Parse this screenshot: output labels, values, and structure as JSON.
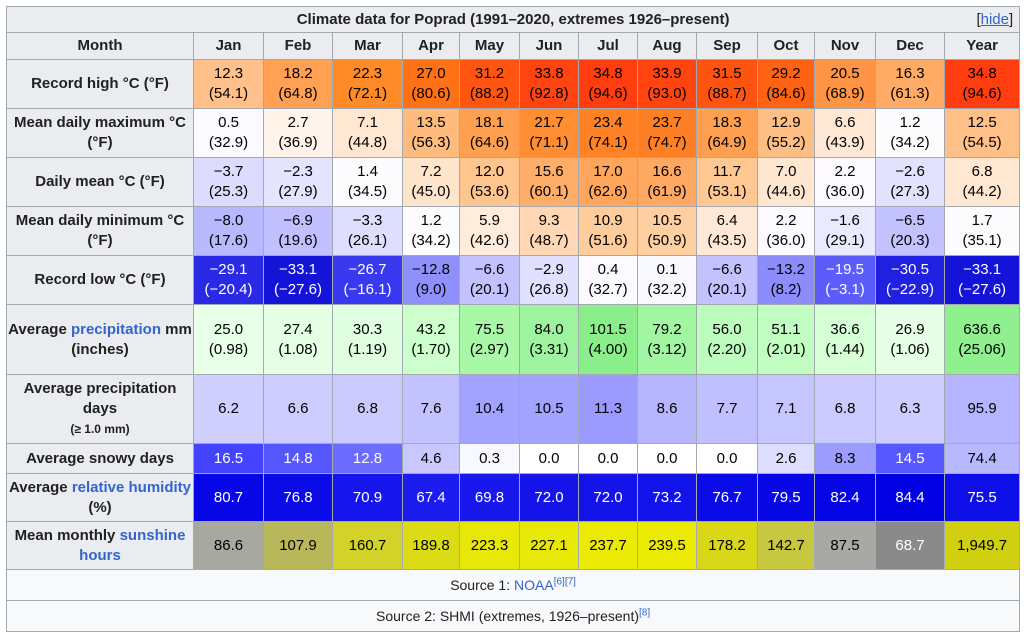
{
  "caption": "Climate data for Poprad (1991–2020, extremes 1926–present)",
  "hide_label": "hide",
  "columns": [
    "Month",
    "Jan",
    "Feb",
    "Mar",
    "Apr",
    "May",
    "Jun",
    "Jul",
    "Aug",
    "Sep",
    "Oct",
    "Nov",
    "Dec",
    "Year"
  ],
  "rows": [
    {
      "label": "Record high °C (°F)",
      "cells": [
        {
          "c": "12.3",
          "f": "(54.1)",
          "bg": "#ffc08a",
          "fg": "#000000"
        },
        {
          "c": "18.2",
          "f": "(64.8)",
          "bg": "#ffa052",
          "fg": "#000000"
        },
        {
          "c": "22.3",
          "f": "(72.1)",
          "bg": "#ff8a28",
          "fg": "#000000"
        },
        {
          "c": "27.0",
          "f": "(80.6)",
          "bg": "#ff7115",
          "fg": "#000000"
        },
        {
          "c": "31.2",
          "f": "(88.2)",
          "bg": "#ff5510",
          "fg": "#000000"
        },
        {
          "c": "33.8",
          "f": "(92.8)",
          "bg": "#ff4410",
          "fg": "#000000"
        },
        {
          "c": "34.8",
          "f": "(94.6)",
          "bg": "#ff3d0e",
          "fg": "#000000"
        },
        {
          "c": "33.9",
          "f": "(93.0)",
          "bg": "#ff4410",
          "fg": "#000000"
        },
        {
          "c": "31.5",
          "f": "(88.7)",
          "bg": "#ff5310",
          "fg": "#000000"
        },
        {
          "c": "29.2",
          "f": "(84.6)",
          "bg": "#ff6212",
          "fg": "#000000"
        },
        {
          "c": "20.5",
          "f": "(68.9)",
          "bg": "#ff9544",
          "fg": "#000000"
        },
        {
          "c": "16.3",
          "f": "(61.3)",
          "bg": "#ffab66",
          "fg": "#000000"
        },
        {
          "c": "34.8",
          "f": "(94.6)",
          "bg": "#ff3d0e",
          "fg": "#000000"
        }
      ]
    },
    {
      "label": "Mean daily maximum °C (°F)",
      "cells": [
        {
          "c": "0.5",
          "f": "(32.9)",
          "bg": "#fafaff",
          "fg": "#000000"
        },
        {
          "c": "2.7",
          "f": "(36.9)",
          "bg": "#fff3ea",
          "fg": "#000000"
        },
        {
          "c": "7.1",
          "f": "(44.8)",
          "bg": "#ffe7d2",
          "fg": "#000000"
        },
        {
          "c": "13.5",
          "f": "(56.3)",
          "bg": "#ffba7e",
          "fg": "#000000"
        },
        {
          "c": "18.1",
          "f": "(64.6)",
          "bg": "#ffa050",
          "fg": "#000000"
        },
        {
          "c": "21.7",
          "f": "(71.1)",
          "bg": "#ff8d31",
          "fg": "#000000"
        },
        {
          "c": "23.4",
          "f": "(74.1)",
          "bg": "#ff8226",
          "fg": "#000000"
        },
        {
          "c": "23.7",
          "f": "(74.7)",
          "bg": "#ff8024",
          "fg": "#000000"
        },
        {
          "c": "18.3",
          "f": "(64.9)",
          "bg": "#ff9f4f",
          "fg": "#000000"
        },
        {
          "c": "12.9",
          "f": "(55.2)",
          "bg": "#ffbe84",
          "fg": "#000000"
        },
        {
          "c": "6.6",
          "f": "(43.9)",
          "bg": "#ffe9d6",
          "fg": "#000000"
        },
        {
          "c": "1.2",
          "f": "(34.2)",
          "bg": "#fcfcff",
          "fg": "#000000"
        },
        {
          "c": "12.5",
          "f": "(54.5)",
          "bg": "#ffc087",
          "fg": "#000000"
        }
      ]
    },
    {
      "label": "Daily mean °C (°F)",
      "cells": [
        {
          "c": "−3.7",
          "f": "(25.3)",
          "bg": "#dcdcff",
          "fg": "#000000"
        },
        {
          "c": "−2.3",
          "f": "(27.9)",
          "bg": "#e4e4ff",
          "fg": "#000000"
        },
        {
          "c": "1.4",
          "f": "(34.5)",
          "bg": "#fcfcff",
          "fg": "#000000"
        },
        {
          "c": "7.2",
          "f": "(45.0)",
          "bg": "#ffe4cc",
          "fg": "#000000"
        },
        {
          "c": "12.0",
          "f": "(53.6)",
          "bg": "#ffc58e",
          "fg": "#000000"
        },
        {
          "c": "15.6",
          "f": "(60.1)",
          "bg": "#ffae6a",
          "fg": "#000000"
        },
        {
          "c": "17.0",
          "f": "(62.6)",
          "bg": "#ffa65c",
          "fg": "#000000"
        },
        {
          "c": "16.6",
          "f": "(61.9)",
          "bg": "#ffa862",
          "fg": "#000000"
        },
        {
          "c": "11.7",
          "f": "(53.1)",
          "bg": "#ffc792",
          "fg": "#000000"
        },
        {
          "c": "7.0",
          "f": "(44.6)",
          "bg": "#ffe6d0",
          "fg": "#000000"
        },
        {
          "c": "2.2",
          "f": "(36.0)",
          "bg": "#fcfaff",
          "fg": "#000000"
        },
        {
          "c": "−2.6",
          "f": "(27.3)",
          "bg": "#e2e2ff",
          "fg": "#000000"
        },
        {
          "c": "6.8",
          "f": "(44.2)",
          "bg": "#ffe7d2",
          "fg": "#000000"
        }
      ]
    },
    {
      "label": "Mean daily minimum °C (°F)",
      "cells": [
        {
          "c": "−8.0",
          "f": "(17.6)",
          "bg": "#b8b8ff",
          "fg": "#000000"
        },
        {
          "c": "−6.9",
          "f": "(19.6)",
          "bg": "#c0c0ff",
          "fg": "#000000"
        },
        {
          "c": "−3.3",
          "f": "(26.1)",
          "bg": "#dedeff",
          "fg": "#000000"
        },
        {
          "c": "1.2",
          "f": "(34.2)",
          "bg": "#fcfcff",
          "fg": "#000000"
        },
        {
          "c": "5.9",
          "f": "(42.6)",
          "bg": "#ffecda",
          "fg": "#000000"
        },
        {
          "c": "9.3",
          "f": "(48.7)",
          "bg": "#ffd7b4",
          "fg": "#000000"
        },
        {
          "c": "10.9",
          "f": "(51.6)",
          "bg": "#ffcc9c",
          "fg": "#000000"
        },
        {
          "c": "10.5",
          "f": "(50.9)",
          "bg": "#ffcfa2",
          "fg": "#000000"
        },
        {
          "c": "6.4",
          "f": "(43.5)",
          "bg": "#ffe9d6",
          "fg": "#000000"
        },
        {
          "c": "2.2",
          "f": "(36.0)",
          "bg": "#fcfaff",
          "fg": "#000000"
        },
        {
          "c": "−1.6",
          "f": "(29.1)",
          "bg": "#eaeaff",
          "fg": "#000000"
        },
        {
          "c": "−6.5",
          "f": "(20.3)",
          "bg": "#c2c2ff",
          "fg": "#000000"
        },
        {
          "c": "1.7",
          "f": "(35.1)",
          "bg": "#fcfcff",
          "fg": "#000000"
        }
      ]
    },
    {
      "label": "Record low °C (°F)",
      "cells": [
        {
          "c": "−29.1",
          "f": "(−20.4)",
          "bg": "#2a2ae6",
          "fg": "#ffffff"
        },
        {
          "c": "−33.1",
          "f": "(−27.6)",
          "bg": "#1414d8",
          "fg": "#ffffff"
        },
        {
          "c": "−26.7",
          "f": "(−16.1)",
          "bg": "#3939f0",
          "fg": "#ffffff"
        },
        {
          "c": "−12.8",
          "f": "(9.0)",
          "bg": "#9090fc",
          "fg": "#000000"
        },
        {
          "c": "−6.6",
          "f": "(20.1)",
          "bg": "#c2c2ff",
          "fg": "#000000"
        },
        {
          "c": "−2.9",
          "f": "(26.8)",
          "bg": "#e0e0ff",
          "fg": "#000000"
        },
        {
          "c": "0.4",
          "f": "(32.7)",
          "bg": "#fafaff",
          "fg": "#000000"
        },
        {
          "c": "0.1",
          "f": "(32.2)",
          "bg": "#f8f8ff",
          "fg": "#000000"
        },
        {
          "c": "−6.6",
          "f": "(20.1)",
          "bg": "#c2c2ff",
          "fg": "#000000"
        },
        {
          "c": "−13.2",
          "f": "(8.2)",
          "bg": "#8c8cfc",
          "fg": "#000000"
        },
        {
          "c": "−19.5",
          "f": "(−3.1)",
          "bg": "#5c5cfa",
          "fg": "#ffffff"
        },
        {
          "c": "−30.5",
          "f": "(−22.9)",
          "bg": "#2020e0",
          "fg": "#ffffff"
        },
        {
          "c": "−33.1",
          "f": "(−27.6)",
          "bg": "#1414d8",
          "fg": "#ffffff"
        }
      ]
    },
    {
      "label_pre": "Average",
      "label_link": "precipitation",
      "label_post": "mm (inches)",
      "cells": [
        {
          "c": "25.0",
          "f": "(0.98)",
          "bg": "#e8ffe8",
          "fg": "#000000"
        },
        {
          "c": "27.4",
          "f": "(1.08)",
          "bg": "#e4ffe4",
          "fg": "#000000"
        },
        {
          "c": "30.3",
          "f": "(1.19)",
          "bg": "#e0ffe0",
          "fg": "#000000"
        },
        {
          "c": "43.2",
          "f": "(1.70)",
          "bg": "#ccffcc",
          "fg": "#000000"
        },
        {
          "c": "75.5",
          "f": "(2.97)",
          "bg": "#a8f8a8",
          "fg": "#000000"
        },
        {
          "c": "84.0",
          "f": "(3.31)",
          "bg": "#9ef49e",
          "fg": "#000000"
        },
        {
          "c": "101.5",
          "f": "(4.00)",
          "bg": "#8aee8a",
          "fg": "#000000"
        },
        {
          "c": "79.2",
          "f": "(3.12)",
          "bg": "#a2f6a2",
          "fg": "#000000"
        },
        {
          "c": "56.0",
          "f": "(2.20)",
          "bg": "#bcfcbc",
          "fg": "#000000"
        },
        {
          "c": "51.1",
          "f": "(2.01)",
          "bg": "#c2fec2",
          "fg": "#000000"
        },
        {
          "c": "36.6",
          "f": "(1.44)",
          "bg": "#d6ffd6",
          "fg": "#000000"
        },
        {
          "c": "26.9",
          "f": "(1.06)",
          "bg": "#e6ffe6",
          "fg": "#000000"
        },
        {
          "c": "636.6",
          "f": "(25.06)",
          "bg": "#90f090",
          "fg": "#000000"
        }
      ]
    },
    {
      "label_pre": "Average precipitation days",
      "label_small": "(≥ 1.0 mm)",
      "cells": [
        {
          "c": "6.2",
          "bg": "#d0d0ff",
          "fg": "#000000"
        },
        {
          "c": "6.6",
          "bg": "#ccccff",
          "fg": "#000000"
        },
        {
          "c": "6.8",
          "bg": "#cacaff",
          "fg": "#000000"
        },
        {
          "c": "7.6",
          "bg": "#c2c2ff",
          "fg": "#000000"
        },
        {
          "c": "10.4",
          "bg": "#a2a2ff",
          "fg": "#000000"
        },
        {
          "c": "10.5",
          "bg": "#a2a2ff",
          "fg": "#000000"
        },
        {
          "c": "11.3",
          "bg": "#9a9aff",
          "fg": "#000000"
        },
        {
          "c": "8.6",
          "bg": "#b6b6ff",
          "fg": "#000000"
        },
        {
          "c": "7.7",
          "bg": "#c0c0ff",
          "fg": "#000000"
        },
        {
          "c": "7.1",
          "bg": "#c6c6ff",
          "fg": "#000000"
        },
        {
          "c": "6.8",
          "bg": "#cacaff",
          "fg": "#000000"
        },
        {
          "c": "6.3",
          "bg": "#cecdff",
          "fg": "#000000"
        },
        {
          "c": "95.9",
          "bg": "#b4b4ff",
          "fg": "#000000"
        }
      ]
    },
    {
      "label": "Average snowy days",
      "cells": [
        {
          "c": "16.5",
          "bg": "#4444ff",
          "fg": "#ffffff"
        },
        {
          "c": "14.8",
          "bg": "#5656ff",
          "fg": "#ffffff"
        },
        {
          "c": "12.8",
          "bg": "#6c6cff",
          "fg": "#ffffff"
        },
        {
          "c": "4.6",
          "bg": "#c8c8ff",
          "fg": "#000000"
        },
        {
          "c": "0.3",
          "bg": "#f8f8ff",
          "fg": "#000000"
        },
        {
          "c": "0.0",
          "bg": "#ffffff",
          "fg": "#000000"
        },
        {
          "c": "0.0",
          "bg": "#ffffff",
          "fg": "#000000"
        },
        {
          "c": "0.0",
          "bg": "#ffffff",
          "fg": "#000000"
        },
        {
          "c": "0.0",
          "bg": "#ffffff",
          "fg": "#000000"
        },
        {
          "c": "2.6",
          "bg": "#dedeff",
          "fg": "#000000"
        },
        {
          "c": "8.3",
          "bg": "#9c9cff",
          "fg": "#000000"
        },
        {
          "c": "14.5",
          "bg": "#5858ff",
          "fg": "#ffffff"
        },
        {
          "c": "74.4",
          "bg": "#b8b8ff",
          "fg": "#000000"
        }
      ]
    },
    {
      "label_pre": "Average",
      "label_link": "relative humidity",
      "label_post": "(%)",
      "cells": [
        {
          "c": "80.7",
          "bg": "#0606e6",
          "fg": "#ffffff"
        },
        {
          "c": "76.8",
          "bg": "#0b0be8",
          "fg": "#ffffff"
        },
        {
          "c": "70.9",
          "bg": "#1616ec",
          "fg": "#ffffff"
        },
        {
          "c": "67.4",
          "bg": "#1c1cee",
          "fg": "#ffffff"
        },
        {
          "c": "69.8",
          "bg": "#1818ec",
          "fg": "#ffffff"
        },
        {
          "c": "72.0",
          "bg": "#1414ea",
          "fg": "#ffffff"
        },
        {
          "c": "72.0",
          "bg": "#1414ea",
          "fg": "#ffffff"
        },
        {
          "c": "73.2",
          "bg": "#1212ea",
          "fg": "#ffffff"
        },
        {
          "c": "76.7",
          "bg": "#0b0be8",
          "fg": "#ffffff"
        },
        {
          "c": "79.5",
          "bg": "#0808e6",
          "fg": "#ffffff"
        },
        {
          "c": "82.4",
          "bg": "#0404e4",
          "fg": "#ffffff"
        },
        {
          "c": "84.4",
          "bg": "#0000e2",
          "fg": "#ffffff"
        },
        {
          "c": "75.5",
          "bg": "#0e0ee8",
          "fg": "#ffffff"
        }
      ]
    },
    {
      "label_pre": "Mean monthly",
      "label_link": "sunshine hours",
      "cells": [
        {
          "c": "86.6",
          "bg": "#a8a8a0",
          "fg": "#000000"
        },
        {
          "c": "107.9",
          "bg": "#b8b85a",
          "fg": "#000000"
        },
        {
          "c": "160.7",
          "bg": "#d2d228",
          "fg": "#000000"
        },
        {
          "c": "189.8",
          "bg": "#dcdc14",
          "fg": "#000000"
        },
        {
          "c": "223.3",
          "bg": "#e8e808",
          "fg": "#000000"
        },
        {
          "c": "227.1",
          "bg": "#e8e806",
          "fg": "#000000"
        },
        {
          "c": "237.7",
          "bg": "#eaea04",
          "fg": "#000000"
        },
        {
          "c": "239.5",
          "bg": "#eaea04",
          "fg": "#000000"
        },
        {
          "c": "178.2",
          "bg": "#d8d818",
          "fg": "#000000"
        },
        {
          "c": "142.7",
          "bg": "#c8c840",
          "fg": "#000000"
        },
        {
          "c": "87.5",
          "bg": "#a8a8a4",
          "fg": "#000000"
        },
        {
          "c": "68.7",
          "bg": "#8a8a8a",
          "fg": "#ffffff"
        },
        {
          "c": "1,949.7",
          "bg": "#d0d010",
          "fg": "#000000"
        }
      ]
    }
  ],
  "source1": {
    "prefix": "Source 1: ",
    "link": "NOAA",
    "refs": "[6][7]"
  },
  "source2": {
    "text": "Source 2: SHMI (extremes, 1926–present)",
    "refs": "[8]"
  }
}
